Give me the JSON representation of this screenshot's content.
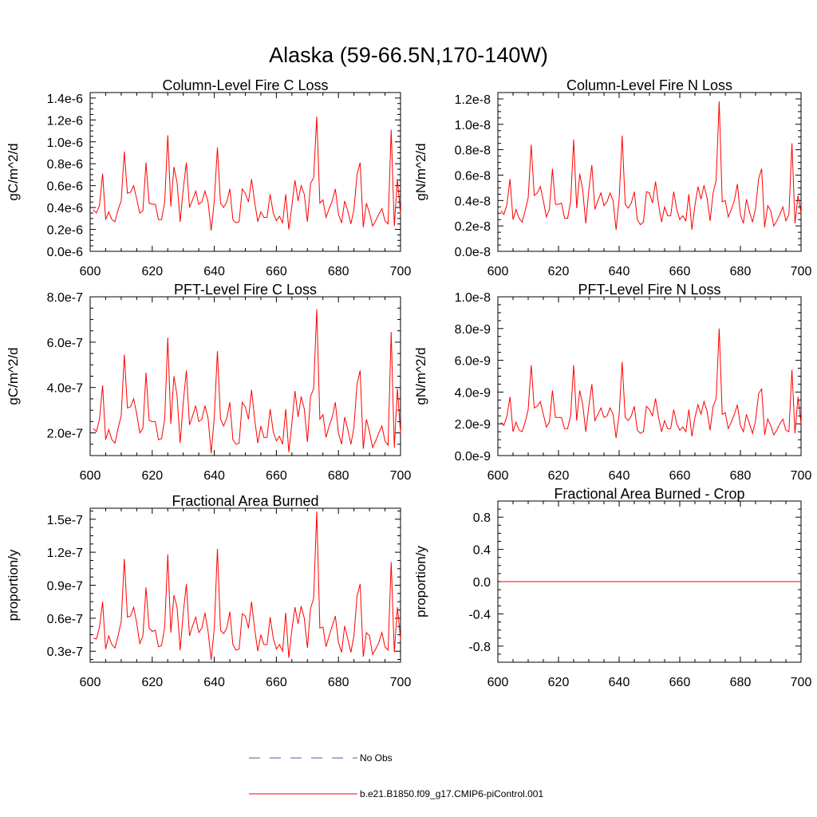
{
  "figure": {
    "title": "Alaska (59-66.5N,170-140W)"
  },
  "legend": {
    "entries": [
      {
        "label": "No Obs",
        "color": "#4a5aa8",
        "style": "dashed"
      },
      {
        "label": "b.e21.B1850.f09_g17.CMIP6-piControl.001",
        "color": "#ff0000",
        "style": "solid"
      }
    ]
  },
  "colors": {
    "series": "#ff0000",
    "axis": "#000000"
  },
  "chart_data": [
    {
      "type": "line",
      "title": "Column-Level Fire C Loss",
      "ylabel": "gC/m^2/d",
      "xlabel": "",
      "xlim": [
        600,
        700
      ],
      "ylim": [
        0,
        1.45e-06
      ],
      "xticks": [
        600,
        620,
        640,
        660,
        680,
        700
      ],
      "xtick_labels": [
        "600",
        "620",
        "640",
        "660",
        "680",
        "700"
      ],
      "yticks": [
        0,
        2e-07,
        4e-07,
        6e-07,
        8e-07,
        1e-06,
        1.2e-06,
        1.4e-06
      ],
      "ytick_labels": [
        "0.0e-6",
        "0.2e-6",
        "0.4e-6",
        "0.6e-6",
        "0.8e-6",
        "1.0e-6",
        "1.2e-6",
        "1.4e-6"
      ],
      "x_start": 601,
      "series": [
        {
          "name": "b.e21.B1850.f09_g17.CMIP6-piControl.001",
          "values": [
            3.8e-07,
            3.5e-07,
            4.2e-07,
            7.1e-07,
            2.9e-07,
            3.6e-07,
            2.9e-07,
            2.7e-07,
            3.8e-07,
            4.6e-07,
            9.1e-07,
            5.3e-07,
            5.4e-07,
            6e-07,
            4.8e-07,
            3.5e-07,
            3.7e-07,
            8.1e-07,
            4.4e-07,
            4.3e-07,
            4.3e-07,
            2.9e-07,
            2.9e-07,
            4.5e-07,
            1.06e-06,
            4.1e-07,
            7.7e-07,
            6.3e-07,
            2.7e-07,
            5.7e-07,
            8.1e-07,
            4e-07,
            4.7e-07,
            5.5e-07,
            4.3e-07,
            4.5e-07,
            5.5e-07,
            4.5e-07,
            1.9e-07,
            4.6e-07,
            9.5e-07,
            4.4e-07,
            4e-07,
            4.5e-07,
            5.7e-07,
            2.9e-07,
            2.6e-07,
            2.7e-07,
            5.7e-07,
            5.3e-07,
            4.5e-07,
            6.6e-07,
            4.5e-07,
            2.7e-07,
            3.6e-07,
            3.1e-07,
            3.1e-07,
            5.2e-07,
            3.5e-07,
            2.8e-07,
            3.2e-07,
            2.6e-07,
            5.2e-07,
            2e-07,
            4.2e-07,
            6.5e-07,
            4.6e-07,
            6e-07,
            5.2e-07,
            2.7e-07,
            6.2e-07,
            6.7e-07,
            1.23e-06,
            4.4e-07,
            4.7e-07,
            3.1e-07,
            3.9e-07,
            4.6e-07,
            5.7e-07,
            3.4e-07,
            2.6e-07,
            4.6e-07,
            3.7e-07,
            2.5e-07,
            3.8e-07,
            7e-07,
            8.1e-07,
            2.2e-07,
            4.4e-07,
            3.5e-07,
            2.3e-07,
            2.8e-07,
            3.4e-07,
            3.9e-07,
            2.8e-07,
            2.5e-07,
            1.11e-06,
            2.3e-07,
            6.6e-07,
            3.4e-07
          ]
        }
      ]
    },
    {
      "type": "line",
      "title": "Column-Level Fire N Loss",
      "ylabel": "gN/m^2/d",
      "xlabel": "",
      "xlim": [
        600,
        700
      ],
      "ylim": [
        0,
        1.25e-08
      ],
      "xticks": [
        600,
        620,
        640,
        660,
        680,
        700
      ],
      "xtick_labels": [
        "600",
        "620",
        "640",
        "660",
        "680",
        "700"
      ],
      "yticks": [
        0,
        2e-09,
        4e-09,
        6e-09,
        8e-09,
        1e-08,
        1.2e-08
      ],
      "ytick_labels": [
        "0.0e-8",
        "0.2e-8",
        "0.4e-8",
        "0.6e-8",
        "0.8e-8",
        "1.0e-8",
        "1.2e-8"
      ],
      "x_start": 601,
      "series": [
        {
          "name": "b.e21.B1850.f09_g17.CMIP6-piControl.001",
          "values": [
            3.2e-09,
            2.9e-09,
            3.7e-09,
            5.7e-09,
            2.5e-09,
            3.3e-09,
            2.6e-09,
            2.3e-09,
            3.2e-09,
            4.2e-09,
            8.4e-09,
            4.4e-09,
            4.6e-09,
            5.1e-09,
            4e-09,
            2.7e-09,
            3.3e-09,
            6.5e-09,
            3.7e-09,
            3.7e-09,
            3.8e-09,
            2.6e-09,
            2.6e-09,
            3.9e-09,
            8.8e-09,
            3.4e-09,
            6.1e-09,
            4.8e-09,
            2.2e-09,
            4.8e-09,
            6.8e-09,
            3.3e-09,
            4e-09,
            4.6e-09,
            3.6e-09,
            3.9e-09,
            4.6e-09,
            4e-09,
            1.7e-09,
            4.1e-09,
            9.1e-09,
            3.7e-09,
            3.4e-09,
            3.8e-09,
            4.7e-09,
            2.5e-09,
            2.1e-09,
            2.3e-09,
            4.7e-09,
            4.6e-09,
            3.8e-09,
            5.5e-09,
            3.7e-09,
            2.3e-09,
            3.5e-09,
            2.8e-09,
            2.8e-09,
            4.7e-09,
            3.3e-09,
            2.5e-09,
            2.8e-09,
            2.4e-09,
            4.5e-09,
            1.7e-09,
            3.6e-09,
            5.1e-09,
            4.1e-09,
            5.2e-09,
            4.2e-09,
            2.4e-09,
            4.6e-09,
            5.6e-09,
            1.18e-08,
            3.9e-09,
            4e-09,
            2.7e-09,
            3.3e-09,
            4e-09,
            5.3e-09,
            2.9e-09,
            2.2e-09,
            4.1e-09,
            3.1e-09,
            2.3e-09,
            3.4e-09,
            5.7e-09,
            6.5e-09,
            1.9e-09,
            3.6e-09,
            3.2e-09,
            2e-09,
            2.4e-09,
            2.9e-09,
            3.5e-09,
            2.4e-09,
            2.9e-09,
            8.5e-09,
            2.2e-09,
            4.4e-09,
            3e-09
          ]
        }
      ]
    },
    {
      "type": "line",
      "title": "PFT-Level Fire C Loss",
      "ylabel": "gC/m^2/d",
      "xlabel": "",
      "xlim": [
        600,
        700
      ],
      "ylim": [
        1e-07,
        8e-07
      ],
      "xticks": [
        600,
        620,
        640,
        660,
        680,
        700
      ],
      "xtick_labels": [
        "600",
        "620",
        "640",
        "660",
        "680",
        "700"
      ],
      "yticks": [
        2e-07,
        4e-07,
        6e-07,
        8e-07
      ],
      "ytick_labels": [
        "2.0e-7",
        "4.0e-7",
        "6.0e-7",
        "8.0e-7"
      ],
      "x_start": 601,
      "series": [
        {
          "name": "b.e21.B1850.f09_g17.CMIP6-piControl.001",
          "values": [
            2.2e-07,
            2.05e-07,
            2.6e-07,
            4.1e-07,
            1.7e-07,
            2.15e-07,
            1.7e-07,
            1.55e-07,
            2.2e-07,
            2.75e-07,
            5.45e-07,
            3.1e-07,
            3.15e-07,
            3.5e-07,
            2.85e-07,
            2e-07,
            2.2e-07,
            4.65e-07,
            2.55e-07,
            2.5e-07,
            2.5e-07,
            1.7e-07,
            1.75e-07,
            2.6e-07,
            6.2e-07,
            2.4e-07,
            4.5e-07,
            3.65e-07,
            1.55e-07,
            3.35e-07,
            4.75e-07,
            2.35e-07,
            2.75e-07,
            3.2e-07,
            2.5e-07,
            2.6e-07,
            3.2e-07,
            2.65e-07,
            1.1e-07,
            2.7e-07,
            5.6e-07,
            2.6e-07,
            2.3e-07,
            2.65e-07,
            3.35e-07,
            1.7e-07,
            1.5e-07,
            1.55e-07,
            3.35e-07,
            3.15e-07,
            2.6e-07,
            3.9e-07,
            2.6e-07,
            1.55e-07,
            2.3e-07,
            1.8e-07,
            1.8e-07,
            3.05e-07,
            2.05e-07,
            1.65e-07,
            1.85e-07,
            1.5e-07,
            3.05e-07,
            1.15e-07,
            2.45e-07,
            3.85e-07,
            2.7e-07,
            3.6e-07,
            3.05e-07,
            1.6e-07,
            3.6e-07,
            3.95e-07,
            7.45e-07,
            2.6e-07,
            2.8e-07,
            1.8e-07,
            2.3e-07,
            2.7e-07,
            3.35e-07,
            2e-07,
            1.5e-07,
            2.7e-07,
            2.15e-07,
            1.5e-07,
            2.25e-07,
            4.15e-07,
            4.75e-07,
            1.3e-07,
            2.6e-07,
            2.05e-07,
            1.35e-07,
            1.65e-07,
            2e-07,
            2.3e-07,
            1.65e-07,
            1.45e-07,
            6.45e-07,
            1.35e-07,
            3.95e-07,
            2e-07
          ]
        }
      ]
    },
    {
      "type": "line",
      "title": "PFT-Level Fire N Loss",
      "ylabel": "gN/m^2/d",
      "xlabel": "",
      "xlim": [
        600,
        700
      ],
      "ylim": [
        0,
        1e-08
      ],
      "xticks": [
        600,
        620,
        640,
        660,
        680,
        700
      ],
      "xtick_labels": [
        "600",
        "620",
        "640",
        "660",
        "680",
        "700"
      ],
      "yticks": [
        0,
        2e-09,
        4e-09,
        6e-09,
        8e-09,
        1e-08
      ],
      "ytick_labels": [
        "0.0e-9",
        "2.0e-9",
        "4.0e-9",
        "6.0e-9",
        "8.0e-9",
        "1.0e-8"
      ],
      "x_start": 601,
      "series": [
        {
          "name": "b.e21.B1850.f09_g17.CMIP6-piControl.001",
          "values": [
            2.1e-09,
            1.9e-09,
            2.5e-09,
            3.7e-09,
            1.5e-09,
            2.1e-09,
            1.6e-09,
            1.5e-09,
            2.1e-09,
            2.9e-09,
            5.7e-09,
            3e-09,
            3.1e-09,
            3.4e-09,
            2.6e-09,
            1.8e-09,
            2.1e-09,
            4.1e-09,
            2.4e-09,
            2.4e-09,
            2.4e-09,
            1.7e-09,
            1.7e-09,
            2.5e-09,
            5.7e-09,
            2.2e-09,
            4.1e-09,
            3.2e-09,
            1.5e-09,
            3.1e-09,
            4.5e-09,
            2.2e-09,
            2.6e-09,
            3e-09,
            2.4e-09,
            2.5e-09,
            3e-09,
            2.6e-09,
            1.1e-09,
            2.6e-09,
            5.9e-09,
            2.4e-09,
            2.2e-09,
            2.5e-09,
            3.1e-09,
            1.6e-09,
            1.4e-09,
            1.5e-09,
            3.1e-09,
            2.9e-09,
            2.5e-09,
            3.6e-09,
            2.4e-09,
            1.5e-09,
            2.2e-09,
            1.7e-09,
            1.7e-09,
            2.9e-09,
            2e-09,
            1.6e-09,
            1.8e-09,
            1.5e-09,
            2.9e-09,
            1.2e-09,
            2.4e-09,
            3.2e-09,
            2.6e-09,
            3.4e-09,
            2.8e-09,
            1.6e-09,
            3.1e-09,
            3.6e-09,
            8e-09,
            2.6e-09,
            2.7e-09,
            1.7e-09,
            2.1e-09,
            2.6e-09,
            3.2e-09,
            1.9e-09,
            1.5e-09,
            2.6e-09,
            2e-09,
            1.4e-09,
            2.2e-09,
            3.9e-09,
            4.2e-09,
            1.3e-09,
            2.3e-09,
            1.9e-09,
            1.3e-09,
            1.6e-09,
            2e-09,
            2.3e-09,
            1.6e-09,
            1.5e-09,
            5.4e-09,
            1.4e-09,
            3.7e-09,
            2e-09
          ]
        }
      ]
    },
    {
      "type": "line",
      "title": "Fractional Area Burned",
      "ylabel": "proportion/y",
      "xlabel": "",
      "xlim": [
        600,
        700
      ],
      "ylim": [
        2e-08,
        1.6e-07
      ],
      "xticks": [
        600,
        620,
        640,
        660,
        680,
        700
      ],
      "xtick_labels": [
        "600",
        "620",
        "640",
        "660",
        "680",
        "700"
      ],
      "yticks": [
        3e-08,
        6e-08,
        9e-08,
        1.2e-07,
        1.5e-07
      ],
      "ytick_labels": [
        "0.3e-7",
        "0.6e-7",
        "0.9e-7",
        "1.2e-7",
        "1.5e-7"
      ],
      "x_start": 601,
      "series": [
        {
          "name": "b.e21.B1850.f09_g17.CMIP6-piControl.001",
          "values": [
            4.2e-08,
            4.1e-08,
            5.2e-08,
            7.5e-08,
            3.2e-08,
            4.4e-08,
            3.6e-08,
            3.3e-08,
            4.4e-08,
            5.7e-08,
            1.14e-07,
            6.1e-08,
            6.2e-08,
            7e-08,
            5.6e-08,
            3.7e-08,
            4.4e-08,
            8.8e-08,
            5.1e-08,
            4.8e-08,
            4.9e-08,
            3.4e-08,
            3.5e-08,
            5.2e-08,
            1.18e-07,
            4.7e-08,
            8.1e-08,
            7e-08,
            3.1e-08,
            6.5e-08,
            9.1e-08,
            4.4e-08,
            5.3e-08,
            6.1e-08,
            4.7e-08,
            5.1e-08,
            6.5e-08,
            4.8e-08,
            2.2e-08,
            5.1e-08,
            1.23e-07,
            4.9e-08,
            4.6e-08,
            5.1e-08,
            6.6e-08,
            3.6e-08,
            3.1e-08,
            3.2e-08,
            6.4e-08,
            6.2e-08,
            5.1e-08,
            7.5e-08,
            5e-08,
            3e-08,
            4.5e-08,
            3.6e-08,
            3.6e-08,
            6.1e-08,
            4.2e-08,
            3.2e-08,
            3.6e-08,
            3e-08,
            6.5e-08,
            2.4e-08,
            5e-08,
            7e-08,
            5.5e-08,
            7.1e-08,
            6e-08,
            3.3e-08,
            6.9e-08,
            7.8e-08,
            1.57e-07,
            5.1e-08,
            5.2e-08,
            3.4e-08,
            4.4e-08,
            5.3e-08,
            6.2e-08,
            3.8e-08,
            2.9e-08,
            5.3e-08,
            4.1e-08,
            2.9e-08,
            4.4e-08,
            8e-08,
            9.1e-08,
            2.5e-08,
            4.7e-08,
            4.4e-08,
            2.7e-08,
            3.2e-08,
            3.8e-08,
            4.7e-08,
            3.4e-08,
            3.1e-08,
            1.11e-07,
            2.9e-08,
            7e-08,
            4.1e-08
          ]
        }
      ]
    },
    {
      "type": "line",
      "title": "Fractional Area Burned - Crop",
      "ylabel": "proportion/y",
      "xlabel": "",
      "xlim": [
        600,
        700
      ],
      "ylim": [
        -1,
        1
      ],
      "xticks": [
        600,
        620,
        640,
        660,
        680,
        700
      ],
      "xtick_labels": [
        "600",
        "620",
        "640",
        "660",
        "680",
        "700"
      ],
      "yticks": [
        -0.8,
        -0.4,
        0,
        0.4,
        0.8
      ],
      "ytick_labels": [
        "-0.8",
        "-0.4",
        "0.0",
        "0.4",
        "0.8"
      ],
      "x_start": 601,
      "series": [
        {
          "name": "b.e21.B1850.f09_g17.CMIP6-piControl.001",
          "values": [
            0,
            0,
            0,
            0,
            0,
            0,
            0,
            0,
            0,
            0,
            0,
            0,
            0,
            0,
            0,
            0,
            0,
            0,
            0,
            0,
            0,
            0,
            0,
            0,
            0,
            0,
            0,
            0,
            0,
            0,
            0,
            0,
            0,
            0,
            0,
            0,
            0,
            0,
            0,
            0,
            0,
            0,
            0,
            0,
            0,
            0,
            0,
            0,
            0,
            0,
            0,
            0,
            0,
            0,
            0,
            0,
            0,
            0,
            0,
            0,
            0,
            0,
            0,
            0,
            0,
            0,
            0,
            0,
            0,
            0,
            0,
            0,
            0,
            0,
            0,
            0,
            0,
            0,
            0,
            0,
            0,
            0,
            0,
            0,
            0,
            0,
            0,
            0,
            0,
            0,
            0,
            0,
            0,
            0,
            0,
            0,
            0,
            0,
            0,
            0
          ]
        }
      ]
    }
  ]
}
